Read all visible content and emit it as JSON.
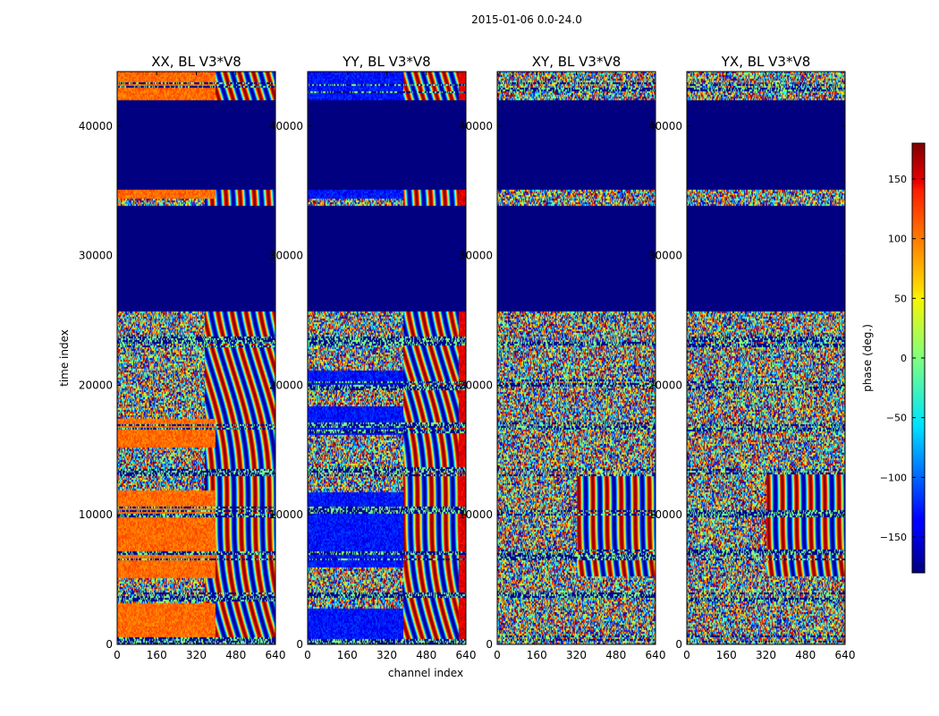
{
  "figure": {
    "suptitle": "2015-01-06 0.0-24.0",
    "xlabel": "channel index",
    "ylabel": "time index",
    "colorbar_label": "phase (deg.)"
  },
  "chart_data": {
    "type": "heatmap",
    "panels": [
      {
        "title": "XX, BL V3*V8",
        "style": "xx"
      },
      {
        "title": "YY, BL V3*V8",
        "style": "yy"
      },
      {
        "title": "XY, BL V3*V8",
        "style": "xy"
      },
      {
        "title": "YX, BL V3*V8",
        "style": "yx"
      }
    ],
    "xlim": [
      0,
      640
    ],
    "ylim": [
      0,
      44200
    ],
    "xticks": [
      0,
      160,
      320,
      480,
      640
    ],
    "yticks": [
      0,
      10000,
      20000,
      30000,
      40000
    ],
    "colorbar": {
      "range": [
        -180,
        180
      ],
      "ticks": [
        -150,
        -100,
        -50,
        0,
        50,
        100,
        150
      ],
      "tick_labels": [
        "−150",
        "−100",
        "−50",
        "0",
        "50",
        "100",
        "150"
      ],
      "colormap": "jet"
    },
    "flagged_time_ranges": [
      [
        25700,
        33900
      ],
      [
        35200,
        42100
      ]
    ],
    "flagged_value": -180,
    "flag_color": "#00007f"
  }
}
